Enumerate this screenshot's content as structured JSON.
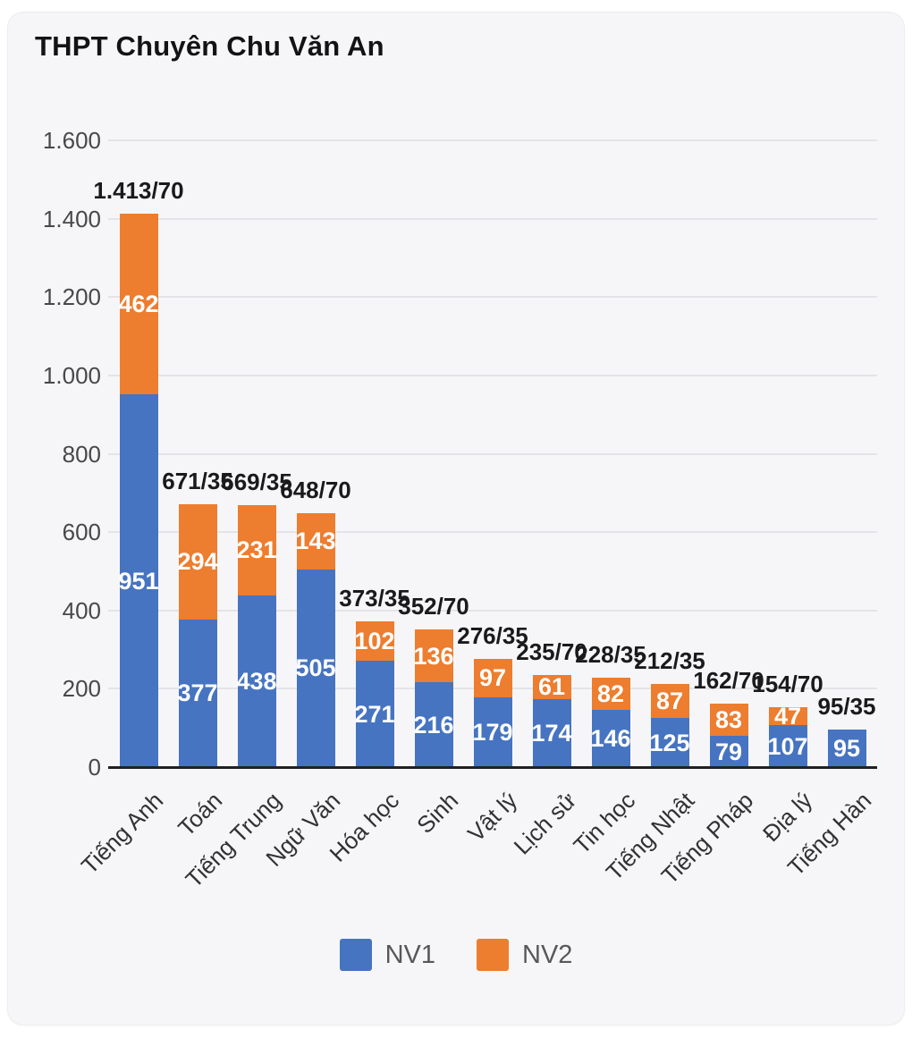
{
  "card": {
    "title": "THPT Chuyên Chu Văn An"
  },
  "chart_data": {
    "type": "bar",
    "stacked": true,
    "title": "THPT Chuyên Chu Văn An",
    "categories": [
      "Tiếng Anh",
      "Toán",
      "Tiếng Trung",
      "Ngữ Văn",
      "Hóa học",
      "Sinh",
      "Vật lý",
      "Lịch sử",
      "Tin học",
      "Tiếng Nhật",
      "Tiếng Pháp",
      "Địa lý",
      "Tiếng Hàn"
    ],
    "series": [
      {
        "name": "NV1",
        "color": "#4674c1",
        "values": [
          951,
          377,
          438,
          505,
          271,
          216,
          179,
          174,
          146,
          125,
          79,
          107,
          95
        ]
      },
      {
        "name": "NV2",
        "color": "#ed7d2f",
        "values": [
          462,
          294,
          231,
          143,
          102,
          136,
          97,
          61,
          82,
          87,
          83,
          47,
          0
        ]
      }
    ],
    "total_labels": [
      "1.413/70",
      "671/35",
      "669/35",
      "648/70",
      "373/35",
      "352/70",
      "276/35",
      "235/70",
      "228/35",
      "212/35",
      "162/70",
      "154/70",
      "95/35"
    ],
    "y_ticks": [
      "1.600",
      "1.400",
      "1.200",
      "1.000",
      "800",
      "600",
      "400",
      "200",
      "0"
    ],
    "y_tick_values": [
      1600,
      1400,
      1200,
      1000,
      800,
      600,
      400,
      200,
      0
    ],
    "ylim": [
      0,
      1600
    ],
    "grid": true,
    "legend_position": "bottom",
    "legend": [
      "NV1",
      "NV2"
    ],
    "colors": {
      "nv1": "#4674c1",
      "nv2": "#ed7d2f",
      "card_bg": "#f6f6f8",
      "grid": "#e4e4e8",
      "axis": "#212124"
    }
  }
}
